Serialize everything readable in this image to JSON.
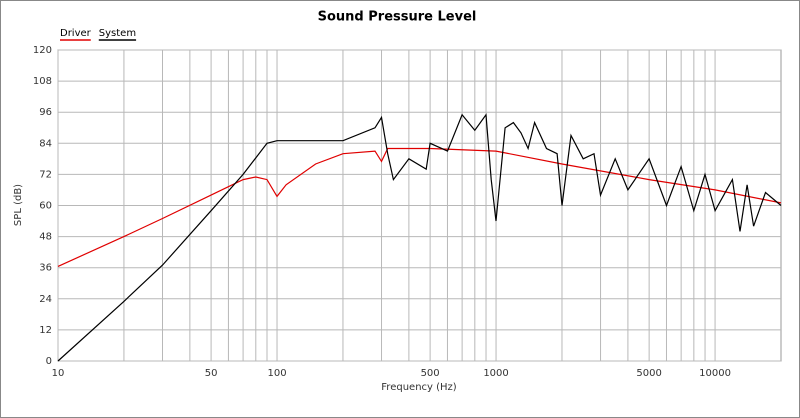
{
  "chart_data": {
    "type": "line",
    "title": "Sound Pressure Level",
    "xlabel": "Frequency (Hz)",
    "ylabel": "SPL (dB)",
    "xscale": "log",
    "xlim": [
      10,
      20000
    ],
    "ylim": [
      0,
      120
    ],
    "xticks": [
      10,
      50,
      100,
      500,
      1000,
      5000,
      10000
    ],
    "x_minor_ticks": [
      20,
      30,
      40,
      60,
      70,
      80,
      90,
      200,
      300,
      400,
      600,
      700,
      800,
      900,
      2000,
      3000,
      4000,
      6000,
      7000,
      8000,
      9000
    ],
    "yticks": [
      0,
      12,
      24,
      36,
      48,
      60,
      72,
      84,
      96,
      108,
      120
    ],
    "grid": true,
    "legend": "top-left",
    "series": [
      {
        "name": "Driver",
        "color": "#e00000",
        "x": [
          10,
          20,
          30,
          50,
          70,
          80,
          90,
          100,
          110,
          150,
          200,
          280,
          300,
          320,
          500,
          1000,
          2000,
          5000,
          10000,
          20000
        ],
        "values": [
          36.5,
          48,
          55,
          64,
          70,
          71,
          70,
          63.5,
          68,
          76,
          80,
          81,
          77,
          82,
          82,
          81,
          76,
          70,
          66,
          61
        ]
      },
      {
        "name": "System",
        "color": "#000000",
        "x": [
          10,
          20,
          30,
          50,
          70,
          90,
          100,
          200,
          280,
          300,
          320,
          340,
          400,
          480,
          500,
          600,
          700,
          800,
          900,
          950,
          1000,
          1100,
          1200,
          1300,
          1400,
          1500,
          1700,
          1900,
          2000,
          2200,
          2500,
          2800,
          3000,
          3500,
          4000,
          5000,
          6000,
          7000,
          8000,
          9000,
          10000,
          12000,
          13000,
          14000,
          15000,
          17000,
          20000
        ],
        "values": [
          0,
          23,
          37,
          58,
          72,
          84,
          85,
          85,
          90,
          94,
          80,
          70,
          78,
          74,
          84,
          81,
          95,
          89,
          95,
          70,
          54,
          90,
          92,
          88,
          82,
          92,
          82,
          80,
          60,
          87,
          78,
          80,
          64,
          78,
          66,
          78,
          60,
          75,
          58,
          72,
          58,
          70,
          50,
          68,
          52,
          65,
          60
        ]
      }
    ]
  }
}
